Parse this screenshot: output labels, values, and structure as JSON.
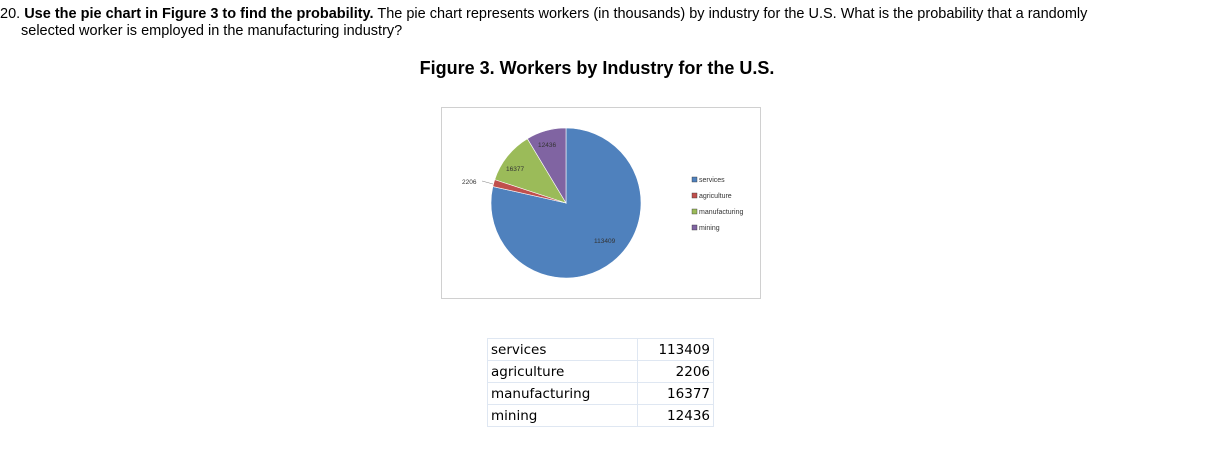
{
  "question": {
    "number": "20.",
    "lead": "Use the pie chart in Figure 3 to find the probability.",
    "text_line1": " The pie chart represents workers (in thousands) by industry for the U.S. What is the probability that a randomly",
    "text_line2": "selected worker is employed in the manufacturing industry?"
  },
  "figure_title": "Figure 3. Workers by Industry for the U.S.",
  "chart_data": {
    "type": "pie",
    "title": "",
    "categories": [
      "services",
      "agriculture",
      "manufacturing",
      "mining"
    ],
    "values": [
      113409,
      2206,
      16377,
      12436
    ],
    "data_labels": [
      "113409",
      "2206",
      "16377",
      "12436"
    ],
    "colors": [
      "#4f81bd",
      "#c0504d",
      "#9bbb59",
      "#8064a2"
    ],
    "legend_placement": "right",
    "start_angle": "top, clockwise"
  },
  "table": {
    "rows": [
      {
        "category": "services",
        "value": "113409"
      },
      {
        "category": "agriculture",
        "value": "2206"
      },
      {
        "category": "manufacturing",
        "value": "16377"
      },
      {
        "category": "mining",
        "value": "12436"
      }
    ]
  }
}
